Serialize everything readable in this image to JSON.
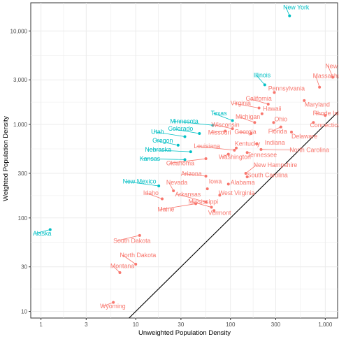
{
  "chart_data": {
    "type": "scatter",
    "xlabel": "Unweighted Population Density",
    "ylabel": "Weighted Population Density",
    "x_scale": "log10",
    "y_scale": "log10",
    "xlim": [
      0.78,
      1350
    ],
    "ylim": [
      8.5,
      20000
    ],
    "x_ticks": [
      1,
      3,
      10,
      30,
      100,
      300,
      1000
    ],
    "x_tick_labels": [
      "1",
      "3",
      "10",
      "30",
      "100",
      "300",
      "1,000"
    ],
    "y_ticks": [
      10,
      30,
      100,
      300,
      1000,
      3000,
      10000
    ],
    "y_tick_labels": [
      "10",
      "30",
      "100",
      "300",
      "1,000",
      "3,000",
      "10,000"
    ],
    "grid": true,
    "reference_line": "y = x",
    "colors": {
      "red": "#F8766D",
      "cyan": "#00BFC4",
      "line": "#000000",
      "grid": "#ebebeb"
    },
    "points": [
      {
        "label": "New York",
        "x": 420,
        "y": 14500,
        "color": "cyan",
        "lx": 360,
        "ly": 17000,
        "anchor": "start"
      },
      {
        "label": "New Jersey",
        "x": 1200,
        "y": 3200,
        "color": "red",
        "lx": 1000,
        "ly": 4000,
        "anchor": "start"
      },
      {
        "label": "Massachusetts",
        "x": 870,
        "y": 2500,
        "color": "red",
        "lx": 740,
        "ly": 3150,
        "anchor": "start"
      },
      {
        "label": "Illinois",
        "x": 230,
        "y": 2650,
        "color": "cyan",
        "lx": 175,
        "ly": 3200,
        "anchor": "start"
      },
      {
        "label": "Pennsylvania",
        "x": 290,
        "y": 2200,
        "color": "red",
        "lx": 250,
        "ly": 2300,
        "anchor": "start"
      },
      {
        "label": "California",
        "x": 250,
        "y": 1650,
        "color": "red",
        "lx": 145,
        "ly": 1800,
        "anchor": "start"
      },
      {
        "label": "Virginia",
        "x": 200,
        "y": 1500,
        "color": "red",
        "lx": 100,
        "ly": 1600,
        "anchor": "start"
      },
      {
        "label": "Maryland",
        "x": 600,
        "y": 1800,
        "color": "red",
        "lx": 605,
        "ly": 1550,
        "anchor": "start"
      },
      {
        "label": "Hawaii",
        "x": 215,
        "y": 1300,
        "color": "red",
        "lx": 220,
        "ly": 1400,
        "anchor": "start"
      },
      {
        "label": "Rhode Island",
        "x": 1000,
        "y": 1250,
        "color": "red",
        "lx": 740,
        "ly": 1250,
        "anchor": "start"
      },
      {
        "label": "Texas",
        "x": 105,
        "y": 1100,
        "color": "cyan",
        "lx": 62,
        "ly": 1250,
        "anchor": "start"
      },
      {
        "label": "Michigan",
        "x": 180,
        "y": 1050,
        "color": "red",
        "lx": 113,
        "ly": 1150,
        "anchor": "start"
      },
      {
        "label": "Ohio",
        "x": 285,
        "y": 1050,
        "color": "red",
        "lx": 290,
        "ly": 1080,
        "anchor": "start"
      },
      {
        "label": "Minnesota",
        "x": 65,
        "y": 980,
        "color": "cyan",
        "lx": 23,
        "ly": 1030,
        "anchor": "start"
      },
      {
        "label": "Wisconsin",
        "x": 105,
        "y": 900,
        "color": "red",
        "lx": 63,
        "ly": 940,
        "anchor": "start"
      },
      {
        "label": "Connecticut",
        "x": 750,
        "y": 1050,
        "color": "red",
        "lx": 690,
        "ly": 930,
        "anchor": "start"
      },
      {
        "label": "Colorado",
        "x": 47,
        "y": 800,
        "color": "cyan",
        "lx": 22,
        "ly": 855,
        "anchor": "start"
      },
      {
        "label": "Florida",
        "x": 340,
        "y": 940,
        "color": "red",
        "lx": 250,
        "ly": 800,
        "anchor": "start"
      },
      {
        "label": "Georgia",
        "x": 165,
        "y": 800,
        "color": "red",
        "lx": 110,
        "ly": 790,
        "anchor": "start"
      },
      {
        "label": "Missouri",
        "x": 88,
        "y": 850,
        "color": "red",
        "lx": 58,
        "ly": 780,
        "anchor": "start"
      },
      {
        "label": "Utah",
        "x": 33,
        "y": 740,
        "color": "cyan",
        "lx": 14.5,
        "ly": 795,
        "anchor": "start"
      },
      {
        "label": "Delaware",
        "x": 440,
        "y": 830,
        "color": "red",
        "lx": 440,
        "ly": 710,
        "anchor": "start"
      },
      {
        "label": "Oregon",
        "x": 28,
        "y": 600,
        "color": "cyan",
        "lx": 15,
        "ly": 640,
        "anchor": "start"
      },
      {
        "label": "Indiana",
        "x": 190,
        "y": 620,
        "color": "red",
        "lx": 230,
        "ly": 605,
        "anchor": "start"
      },
      {
        "label": "Kentucky",
        "x": 115,
        "y": 560,
        "color": "red",
        "lx": 111,
        "ly": 590,
        "anchor": "start"
      },
      {
        "label": "Louisiana",
        "x": 110,
        "y": 530,
        "color": "red",
        "lx": 41,
        "ly": 555,
        "anchor": "start"
      },
      {
        "label": "Nebraska",
        "x": 38,
        "y": 510,
        "color": "cyan",
        "lx": 12.5,
        "ly": 510,
        "anchor": "start"
      },
      {
        "label": "North Carolina",
        "x": 210,
        "y": 540,
        "color": "red",
        "lx": 420,
        "ly": 505,
        "anchor": "start"
      },
      {
        "label": "Tennessee",
        "x": 150,
        "y": 500,
        "color": "red",
        "lx": 150,
        "ly": 450,
        "anchor": "start"
      },
      {
        "label": "Washington",
        "x": 95,
        "y": 480,
        "color": "red",
        "lx": 75,
        "ly": 425,
        "anchor": "start"
      },
      {
        "label": "Kansas",
        "x": 33,
        "y": 420,
        "color": "cyan",
        "lx": 11,
        "ly": 410,
        "anchor": "start"
      },
      {
        "label": "Oklahoma",
        "x": 55,
        "y": 430,
        "color": "red",
        "lx": 21,
        "ly": 365,
        "anchor": "start"
      },
      {
        "label": "New Hampshire",
        "x": 145,
        "y": 300,
        "color": "red",
        "lx": 175,
        "ly": 350,
        "anchor": "start"
      },
      {
        "label": "Arizona",
        "x": 55,
        "y": 280,
        "color": "red",
        "lx": 30,
        "ly": 282,
        "anchor": "start"
      },
      {
        "label": "South Carolina",
        "x": 150,
        "y": 275,
        "color": "red",
        "lx": 150,
        "ly": 272,
        "anchor": "start"
      },
      {
        "label": "New Mexico",
        "x": 17.5,
        "y": 220,
        "color": "cyan",
        "lx": 7.3,
        "ly": 233,
        "anchor": "start"
      },
      {
        "label": "Nevada",
        "x": 25,
        "y": 195,
        "color": "red",
        "lx": 21,
        "ly": 227,
        "anchor": "start"
      },
      {
        "label": "Iowa",
        "x": 57,
        "y": 205,
        "color": "red",
        "lx": 59,
        "ly": 233,
        "anchor": "start"
      },
      {
        "label": "Alabama",
        "x": 95,
        "y": 230,
        "color": "red",
        "lx": 100,
        "ly": 227,
        "anchor": "start"
      },
      {
        "label": "West Virginia",
        "x": 77,
        "y": 175,
        "color": "red",
        "lx": 75,
        "ly": 176,
        "anchor": "start"
      },
      {
        "label": "Idaho",
        "x": 19,
        "y": 160,
        "color": "red",
        "lx": 12,
        "ly": 176,
        "anchor": "start"
      },
      {
        "label": "Arkansas",
        "x": 55,
        "y": 148,
        "color": "red",
        "lx": 26,
        "ly": 170,
        "anchor": "start"
      },
      {
        "label": "Mississippi",
        "x": 63,
        "y": 130,
        "color": "red",
        "lx": 36,
        "ly": 142,
        "anchor": "start"
      },
      {
        "label": "Maine",
        "x": 43,
        "y": 142,
        "color": "red",
        "lx": 17,
        "ly": 117,
        "anchor": "start"
      },
      {
        "label": "Vermont",
        "x": 67,
        "y": 120,
        "color": "red",
        "lx": 58,
        "ly": 108,
        "anchor": "start"
      },
      {
        "label": "Alaska",
        "x": 1.25,
        "y": 75,
        "color": "cyan",
        "lx": 0.82,
        "ly": 65,
        "anchor": "start"
      },
      {
        "label": "South Dakota",
        "x": 11,
        "y": 65,
        "color": "red",
        "lx": 5.8,
        "ly": 54,
        "anchor": "start"
      },
      {
        "label": "North Dakota",
        "x": 10,
        "y": 32,
        "color": "red",
        "lx": 6.8,
        "ly": 38,
        "anchor": "start"
      },
      {
        "label": "Montana",
        "x": 6.8,
        "y": 26,
        "color": "red",
        "lx": 5.4,
        "ly": 29,
        "anchor": "start"
      },
      {
        "label": "Wyoming",
        "x": 5.8,
        "y": 12.5,
        "color": "red",
        "lx": 4.2,
        "ly": 10.8,
        "anchor": "start"
      }
    ]
  }
}
